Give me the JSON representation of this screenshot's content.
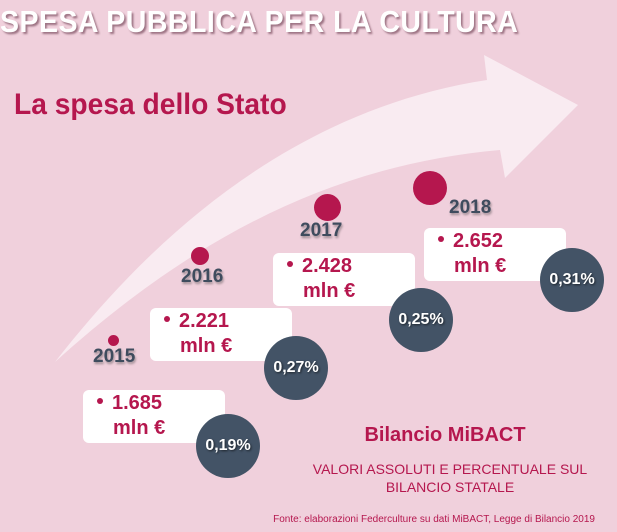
{
  "header": {
    "title": "SPESA PUBBLICA PER LA CULTURA",
    "subtitle": "La spesa dello Stato"
  },
  "timeline": [
    {
      "year": "2015",
      "value": "1.685",
      "unit": "mln €",
      "percent": "0,19%"
    },
    {
      "year": "2016",
      "value": "2.221",
      "unit": "mln €",
      "percent": "0,27%"
    },
    {
      "year": "2017",
      "value": "2.428",
      "unit": "mln €",
      "percent": "0,25%"
    },
    {
      "year": "2018",
      "value": "2.652",
      "unit": "mln €",
      "percent": "0,31%"
    }
  ],
  "legend": {
    "title": "Bilancio MiBACT",
    "description": "VALORI ASSOLUTI E PERCENTUALE SUL BILANCIO STATALE"
  },
  "source": "Fonte: elaborazioni Federculture su dati MiBACT, Legge di Bilancio 2019",
  "colors": {
    "background": "#F0D0DC",
    "accent": "#B5174E",
    "dark": "#435366",
    "year_text": "#3F4C5E"
  }
}
